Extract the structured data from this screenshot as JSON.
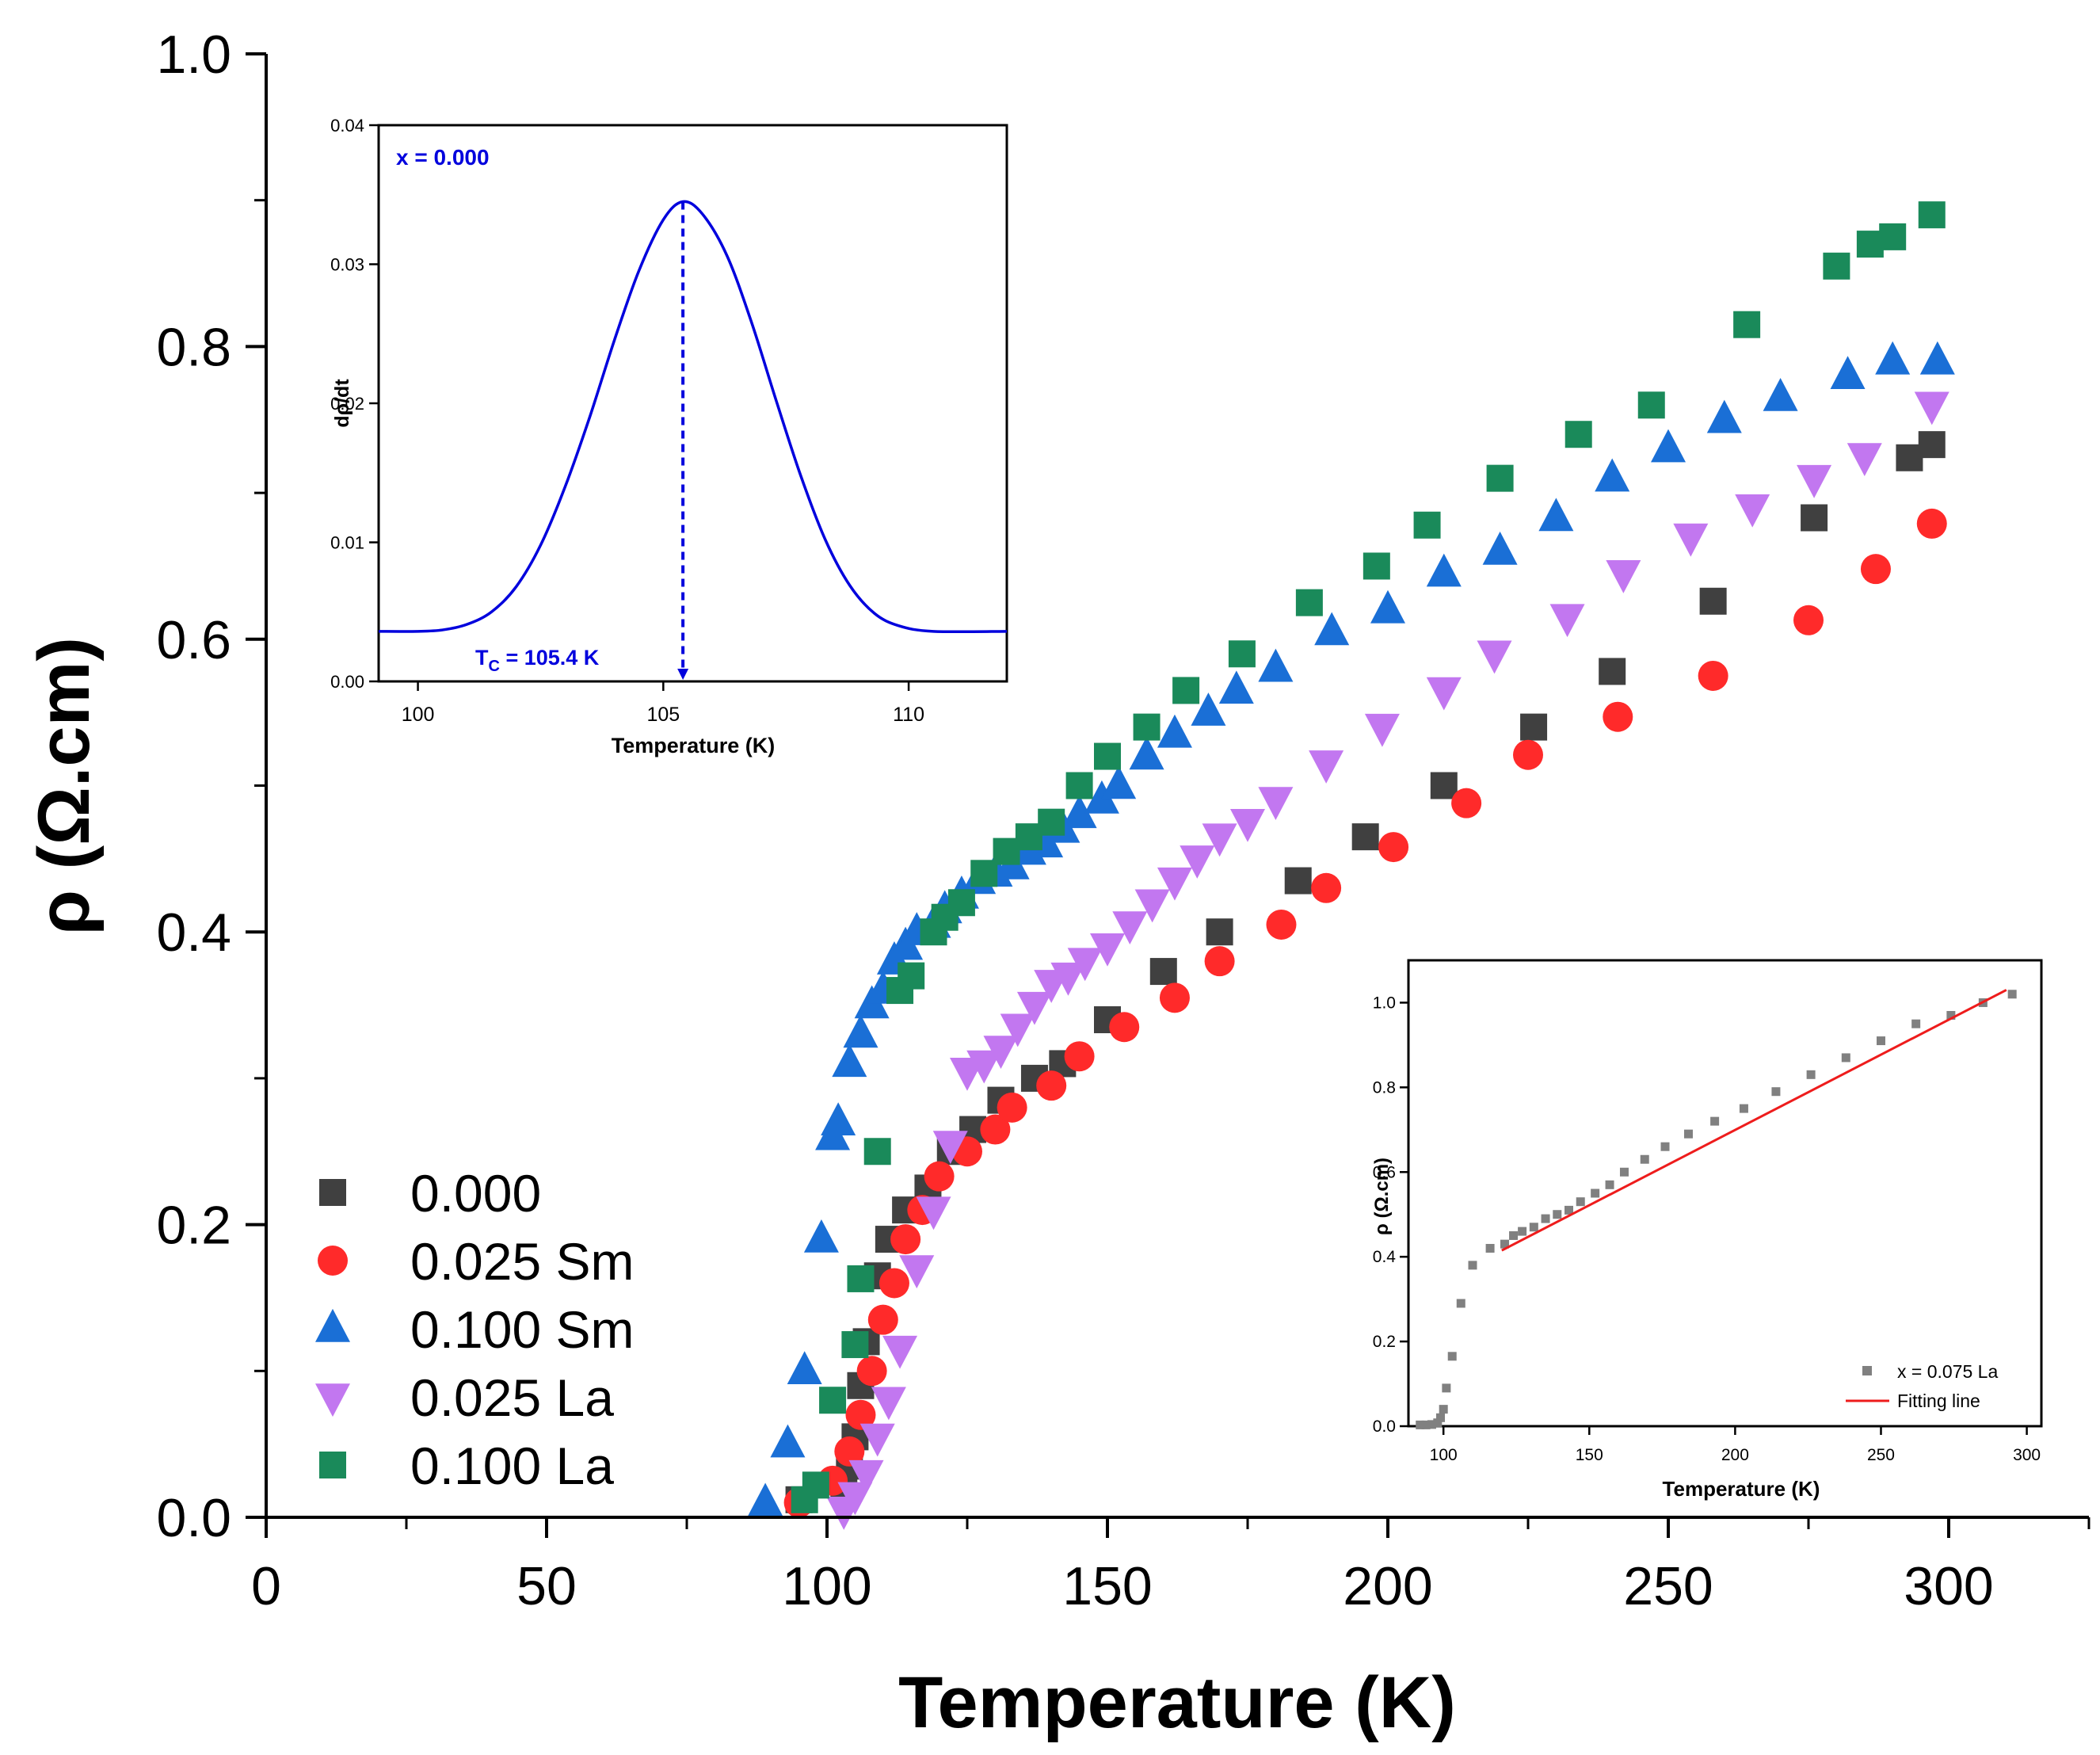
{
  "chart_data": [
    {
      "id": "main",
      "type": "scatter",
      "xlabel": "Temperature (K)",
      "ylabel": "ρ (Ω.cm)",
      "xlim": [
        0,
        325
      ],
      "ylim": [
        0,
        1.0
      ],
      "x_major_ticks": [
        0,
        50,
        100,
        150,
        200,
        250,
        300
      ],
      "x_minor_ticks": [
        25,
        75,
        125,
        175,
        225,
        275,
        325
      ],
      "y_major_ticks": [
        0.0,
        0.2,
        0.4,
        0.6,
        0.8,
        1.0
      ],
      "y_minor_ticks": [
        0.1,
        0.3,
        0.5,
        0.7,
        0.9
      ],
      "x_tick_labels": [
        "0",
        "50",
        "100",
        "150",
        "200",
        "250",
        "300"
      ],
      "y_tick_labels": [
        "0.0",
        "0.2",
        "0.4",
        "0.6",
        "0.8",
        "1.0"
      ],
      "legend_position": "bottom-left",
      "series": [
        {
          "name": "0.000",
          "marker": "square",
          "color": "#404040",
          "x": [
            95,
            103,
            104,
            105,
            106,
            107,
            109,
            111,
            114,
            118,
            122,
            126,
            131,
            137,
            142,
            150,
            160,
            170,
            184,
            196,
            210,
            226,
            240,
            258,
            276,
            293,
            297
          ],
          "y": [
            0.012,
            0.02,
            0.035,
            0.055,
            0.09,
            0.12,
            0.165,
            0.19,
            0.21,
            0.225,
            0.25,
            0.265,
            0.285,
            0.3,
            0.31,
            0.34,
            0.373,
            0.4,
            0.435,
            0.465,
            0.5,
            0.54,
            0.578,
            0.626,
            0.683,
            0.724,
            0.733
          ]
        },
        {
          "name": "0.025 Sm",
          "marker": "circle",
          "color": "#ff2a2a",
          "x": [
            95,
            101,
            104,
            106,
            108,
            110,
            112,
            114,
            117,
            120,
            125,
            130,
            133,
            140,
            145,
            153,
            162,
            170,
            181,
            189,
            201,
            214,
            225,
            241,
            258,
            275,
            287,
            297
          ],
          "y": [
            0.01,
            0.025,
            0.045,
            0.07,
            0.1,
            0.135,
            0.16,
            0.19,
            0.21,
            0.233,
            0.25,
            0.265,
            0.28,
            0.295,
            0.315,
            0.335,
            0.355,
            0.38,
            0.405,
            0.43,
            0.458,
            0.488,
            0.521,
            0.547,
            0.575,
            0.613,
            0.648,
            0.679
          ]
        },
        {
          "name": "0.100 Sm",
          "marker": "triangle-up",
          "color": "#1a6fd6",
          "x": [
            89,
            93,
            96,
            99,
            101,
            102,
            104,
            106,
            108,
            110,
            112,
            114,
            116,
            119,
            121,
            124,
            127,
            130,
            133,
            136,
            139,
            142,
            145,
            149,
            152,
            157,
            162,
            168,
            173,
            180,
            190,
            200,
            210,
            220,
            230,
            240,
            250,
            260,
            270,
            282,
            290,
            298
          ],
          "y": [
            0.01,
            0.05,
            0.1,
            0.19,
            0.26,
            0.27,
            0.31,
            0.33,
            0.35,
            0.36,
            0.38,
            0.39,
            0.4,
            0.405,
            0.415,
            0.425,
            0.435,
            0.44,
            0.445,
            0.455,
            0.46,
            0.47,
            0.48,
            0.49,
            0.5,
            0.52,
            0.535,
            0.55,
            0.565,
            0.58,
            0.605,
            0.62,
            0.645,
            0.66,
            0.683,
            0.71,
            0.73,
            0.75,
            0.765,
            0.78,
            0.79,
            0.79
          ]
        },
        {
          "name": "0.025 La",
          "marker": "triangle-down",
          "color": "#c277f0",
          "x": [
            103,
            105,
            107,
            109,
            111,
            113,
            116,
            119,
            122,
            125,
            128,
            131,
            134,
            137,
            140,
            143,
            146,
            150,
            154,
            158,
            162,
            166,
            170,
            175,
            180,
            189,
            199,
            210,
            219,
            232,
            242,
            254,
            265,
            276,
            285,
            297
          ],
          "y": [
            0.005,
            0.015,
            0.03,
            0.055,
            0.08,
            0.115,
            0.17,
            0.21,
            0.255,
            0.305,
            0.31,
            0.32,
            0.335,
            0.35,
            0.365,
            0.37,
            0.38,
            0.39,
            0.405,
            0.42,
            0.435,
            0.45,
            0.465,
            0.475,
            0.49,
            0.515,
            0.54,
            0.565,
            0.59,
            0.615,
            0.645,
            0.67,
            0.69,
            0.71,
            0.725,
            0.76
          ]
        },
        {
          "name": "0.100 La",
          "marker": "square",
          "color": "#1a8a5a",
          "x": [
            96,
            98,
            101,
            105,
            106,
            109,
            113,
            115,
            119,
            121,
            124,
            128,
            132,
            136,
            140,
            145,
            150,
            157,
            164,
            174,
            186,
            198,
            207,
            220,
            234,
            247,
            264,
            280,
            286,
            290,
            297
          ],
          "y": [
            0.012,
            0.022,
            0.08,
            0.118,
            0.163,
            0.25,
            0.36,
            0.37,
            0.4,
            0.41,
            0.42,
            0.44,
            0.455,
            0.465,
            0.475,
            0.5,
            0.52,
            0.54,
            0.565,
            0.59,
            0.625,
            0.65,
            0.678,
            0.71,
            0.74,
            0.76,
            0.815,
            0.855,
            0.87,
            0.875,
            0.89
          ]
        }
      ]
    },
    {
      "id": "inset_derivative",
      "type": "line",
      "xlabel": "Temperature (K)",
      "ylabel": "dρ/dt",
      "xlim": [
        99.2,
        112
      ],
      "ylim": [
        0,
        0.04
      ],
      "x_major_ticks": [
        100,
        105,
        110
      ],
      "x_tick_labels": [
        "100",
        "105",
        "110"
      ],
      "y_major_ticks": [
        0.0,
        0.01,
        0.02,
        0.03,
        0.04
      ],
      "y_tick_labels": [
        "0.00",
        "0.01",
        "0.02",
        "0.03",
        "0.04"
      ],
      "annotation_label": "x = 0.000",
      "tc_label_prefix": "T",
      "tc_label_sub": "C",
      "tc_label_rest": " = 105.4 K",
      "tc": 105.4,
      "series": [
        {
          "name": "x = 0.000",
          "color": "#0000dd",
          "x": [
            99.2,
            100.0,
            100.5,
            101.0,
            101.5,
            102.0,
            102.5,
            103.0,
            103.5,
            104.0,
            104.5,
            105.0,
            105.4,
            105.8,
            106.3,
            106.8,
            107.3,
            107.8,
            108.3,
            108.8,
            109.3,
            109.8,
            110.5,
            112.0
          ],
          "y": [
            0.0036,
            0.0036,
            0.0037,
            0.0041,
            0.005,
            0.0068,
            0.0098,
            0.014,
            0.019,
            0.0245,
            0.0295,
            0.0332,
            0.0345,
            0.0336,
            0.0306,
            0.0258,
            0.0202,
            0.0148,
            0.0102,
            0.0069,
            0.0049,
            0.004,
            0.0036,
            0.0036
          ]
        }
      ]
    },
    {
      "id": "inset_fit",
      "type": "scatter",
      "xlabel": "Temperature (K)",
      "ylabel": "ρ (Ω.cm)",
      "xlim": [
        88,
        305
      ],
      "ylim": [
        0,
        1.1
      ],
      "x_major_ticks": [
        100,
        150,
        200,
        250,
        300
      ],
      "x_tick_labels": [
        "100",
        "150",
        "200",
        "250",
        "300"
      ],
      "y_major_ticks": [
        0.0,
        0.2,
        0.4,
        0.6,
        0.8,
        1.0
      ],
      "y_tick_labels": [
        "0.0",
        "0.2",
        "0.4",
        "0.6",
        "0.8",
        "1.0"
      ],
      "legend_position": "bottom-right",
      "series": [
        {
          "name": "x = 0.075 La",
          "marker": "square",
          "color": "#808080",
          "x": [
            92,
            94,
            96,
            98,
            99,
            100,
            101,
            103,
            106,
            110,
            116,
            121,
            124,
            127,
            131,
            135,
            139,
            143,
            147,
            152,
            157,
            162,
            169,
            176,
            184,
            193,
            203,
            214,
            226,
            238,
            250,
            262,
            274,
            285,
            295
          ],
          "y": [
            0.003,
            0.003,
            0.004,
            0.008,
            0.02,
            0.04,
            0.09,
            0.165,
            0.29,
            0.38,
            0.42,
            0.43,
            0.45,
            0.46,
            0.47,
            0.49,
            0.5,
            0.51,
            0.53,
            0.55,
            0.57,
            0.6,
            0.63,
            0.66,
            0.69,
            0.72,
            0.75,
            0.79,
            0.83,
            0.87,
            0.91,
            0.95,
            0.97,
            1.0,
            1.02
          ]
        },
        {
          "name": "Fitting line",
          "type": "line",
          "color": "#ee1c1c",
          "x": [
            120,
            293
          ],
          "y": [
            0.415,
            1.03
          ]
        }
      ]
    }
  ]
}
